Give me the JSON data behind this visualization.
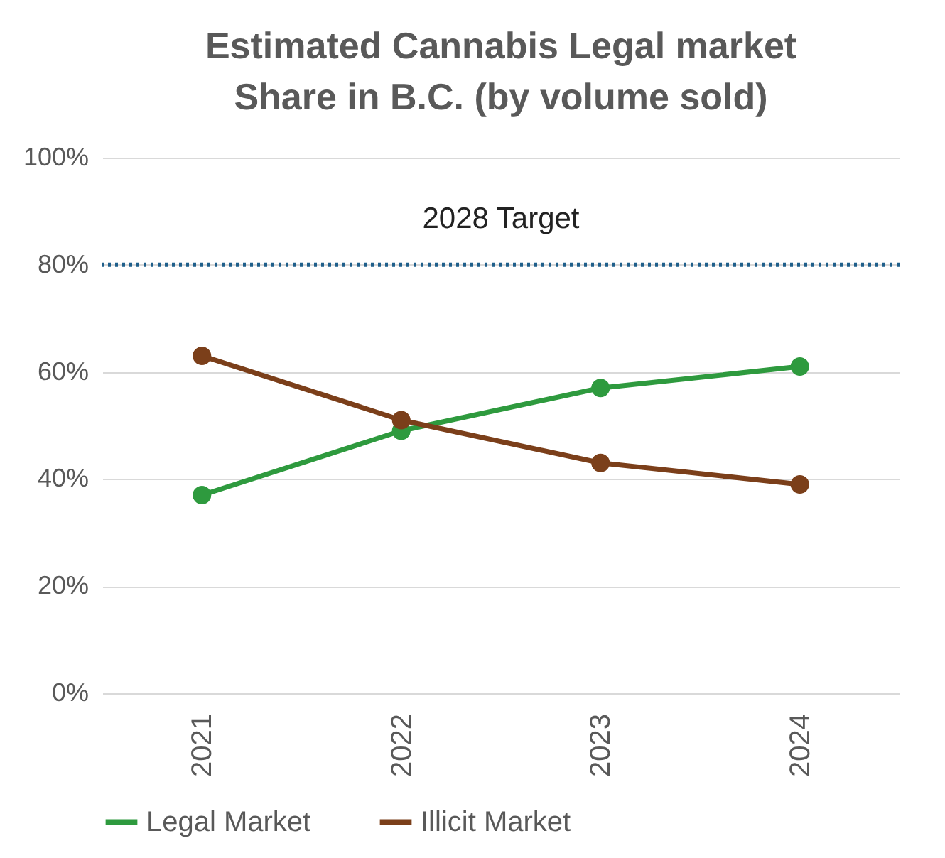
{
  "chart_data": {
    "type": "line",
    "title": "Estimated Cannabis Legal market Share in B.C. (by volume sold)",
    "categories": [
      "2021",
      "2022",
      "2023",
      "2024"
    ],
    "series": [
      {
        "name": "Legal Market",
        "color": "#2e9a3e",
        "values": [
          37,
          49,
          57,
          61
        ]
      },
      {
        "name": "Illicit Market",
        "color": "#7b3f1a",
        "values": [
          63,
          51,
          43,
          39
        ]
      }
    ],
    "ylim": [
      0,
      100
    ],
    "yticks": [
      {
        "value": 0,
        "label": "0%"
      },
      {
        "value": 20,
        "label": "20%"
      },
      {
        "value": 40,
        "label": "40%"
      },
      {
        "value": 60,
        "label": "60%"
      },
      {
        "value": 80,
        "label": "80%"
      },
      {
        "value": 100,
        "label": "100%"
      }
    ],
    "ref_lines": [
      {
        "axis": "y",
        "value": 80,
        "label": "2028 Target",
        "color": "#1f5f8b",
        "line_style": "dotted"
      }
    ],
    "grid": "y",
    "legend": "bottom",
    "marker": "circle",
    "line_style": "solid"
  }
}
